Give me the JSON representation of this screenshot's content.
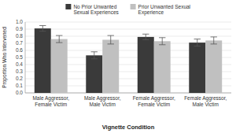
{
  "chart_data": {
    "type": "bar",
    "categories": [
      "Male Aggressor,\nFemale Victim",
      "Male Aggressor,\nMale Victim",
      "Female Aggressor,\nFemale Victim",
      "Female Aggressor,\nMale Victim"
    ],
    "series": [
      {
        "name": "No Prior Unwanted\nSexual Experiences",
        "color": "#3a3a3a",
        "values": [
          0.91,
          0.53,
          0.79,
          0.71
        ],
        "errors": [
          0.04,
          0.05,
          0.04,
          0.05
        ]
      },
      {
        "name": "Prior Unwanted Sexual\nExperience",
        "color": "#c0c0c0",
        "values": [
          0.76,
          0.75,
          0.73,
          0.74
        ],
        "errors": [
          0.05,
          0.06,
          0.05,
          0.05
        ]
      }
    ],
    "xlabel": "Vignette Condition",
    "ylabel": "Proportion Who Intervened",
    "ylim": [
      0.0,
      1.0
    ],
    "yticks": [
      {
        "value": 0.0,
        "label": "0.0"
      },
      0.1,
      0.2,
      0.3,
      0.4,
      0.5,
      0.6,
      0.7,
      0.8,
      0.9,
      {
        "value": 1.0,
        "label": "1.0"
      }
    ],
    "grid": true,
    "legend": "top"
  }
}
